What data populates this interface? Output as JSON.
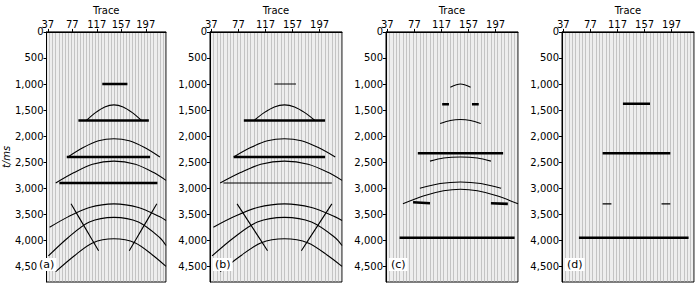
{
  "chart_data": [
    {
      "type": "line",
      "label": "(a)",
      "x_label": "Trace",
      "y_label": "t/ms",
      "color": "#000000",
      "grid": true,
      "xlim": [
        35,
        230
      ],
      "xticks": [
        37,
        77,
        117,
        157,
        197
      ],
      "ylim": [
        0,
        4800
      ],
      "yticks": [
        0,
        500,
        1000,
        1500,
        2000,
        2500,
        3000,
        3500,
        4000,
        4500
      ],
      "series": [
        {
          "line_style": "bold",
          "values": [
            [
              126,
              1000
            ],
            [
              167,
              1000
            ]
          ]
        },
        {
          "line_style": "solid",
          "values": [
            [
              100,
              1700
            ],
            [
              115,
              1550
            ],
            [
              130,
              1440
            ],
            [
              145,
              1400
            ],
            [
              160,
              1440
            ],
            [
              175,
              1550
            ],
            [
              190,
              1700
            ]
          ]
        },
        {
          "line_style": "bold",
          "values": [
            [
              87,
              1700
            ],
            [
              202,
              1700
            ]
          ]
        },
        {
          "line_style": "solid",
          "values": [
            [
              70,
              2400
            ],
            [
              95,
              2220
            ],
            [
              120,
              2090
            ],
            [
              145,
              2050
            ],
            [
              170,
              2090
            ],
            [
              195,
              2220
            ],
            [
              220,
              2400
            ]
          ]
        },
        {
          "line_style": "bold",
          "values": [
            [
              68,
              2400
            ],
            [
              204,
              2400
            ]
          ]
        },
        {
          "line_style": "bold",
          "values": [
            [
              56,
              2900
            ],
            [
              216,
              2900
            ]
          ]
        },
        {
          "line_style": "solid",
          "values": [
            [
              50,
              2900
            ],
            [
              80,
              2700
            ],
            [
              110,
              2540
            ],
            [
              145,
              2480
            ],
            [
              180,
              2540
            ],
            [
              210,
              2700
            ],
            [
              230,
              2850
            ]
          ]
        },
        {
          "line_style": "solid",
          "values": [
            [
              40,
              3750
            ],
            [
              70,
              3550
            ],
            [
              105,
              3370
            ],
            [
              145,
              3300
            ],
            [
              185,
              3370
            ],
            [
              220,
              3550
            ],
            [
              230,
              3620
            ]
          ]
        },
        {
          "line_style": "solid",
          "values": [
            [
              38,
              4300
            ],
            [
              70,
              3950
            ],
            [
              105,
              3650
            ],
            [
              145,
              3560
            ],
            [
              185,
              3650
            ],
            [
              220,
              3950
            ],
            [
              230,
              4100
            ]
          ]
        },
        {
          "line_style": "solid",
          "values": [
            [
              50,
              4600
            ],
            [
              80,
              4300
            ],
            [
              110,
              4050
            ],
            [
              145,
              3970
            ],
            [
              180,
              4050
            ],
            [
              210,
              4300
            ],
            [
              230,
              4500
            ]
          ]
        },
        {
          "line_style": "solid",
          "values": [
            [
              75,
              3300
            ],
            [
              100,
              3800
            ],
            [
              120,
              4200
            ]
          ]
        },
        {
          "line_style": "solid",
          "values": [
            [
              215,
              3300
            ],
            [
              190,
              3800
            ],
            [
              170,
              4200
            ]
          ]
        }
      ]
    },
    {
      "type": "line",
      "label": "(b)",
      "x_label": "Trace",
      "color": "#000000",
      "grid": true,
      "xlim": [
        35,
        230
      ],
      "xticks": [
        37,
        77,
        117,
        157,
        197
      ],
      "ylim": [
        0,
        4800
      ],
      "yticks": [
        0,
        500,
        1000,
        1500,
        2000,
        2500,
        3000,
        3500,
        4000,
        4500
      ],
      "series": [
        {
          "line_style": "solid",
          "values": [
            [
              130,
              1000
            ],
            [
              162,
              1000
            ]
          ]
        },
        {
          "line_style": "solid",
          "values": [
            [
              100,
              1700
            ],
            [
              115,
              1550
            ],
            [
              130,
              1440
            ],
            [
              145,
              1400
            ],
            [
              160,
              1440
            ],
            [
              175,
              1550
            ],
            [
              190,
              1700
            ]
          ]
        },
        {
          "line_style": "bold",
          "values": [
            [
              85,
              1700
            ],
            [
              205,
              1700
            ]
          ]
        },
        {
          "line_style": "solid",
          "values": [
            [
              70,
              2400
            ],
            [
              95,
              2220
            ],
            [
              120,
              2090
            ],
            [
              145,
              2050
            ],
            [
              170,
              2090
            ],
            [
              195,
              2220
            ],
            [
              220,
              2400
            ]
          ]
        },
        {
          "line_style": "bold",
          "values": [
            [
              70,
              2400
            ],
            [
              205,
              2400
            ]
          ]
        },
        {
          "line_style": "solid",
          "values": [
            [
              55,
              2900
            ],
            [
              215,
              2900
            ]
          ]
        },
        {
          "line_style": "solid",
          "values": [
            [
              50,
              2900
            ],
            [
              80,
              2700
            ],
            [
              110,
              2540
            ],
            [
              145,
              2480
            ],
            [
              180,
              2540
            ],
            [
              210,
              2700
            ],
            [
              230,
              2850
            ]
          ]
        },
        {
          "line_style": "solid",
          "values": [
            [
              40,
              3750
            ],
            [
              70,
              3550
            ],
            [
              105,
              3370
            ],
            [
              145,
              3300
            ],
            [
              185,
              3370
            ],
            [
              220,
              3550
            ],
            [
              230,
              3620
            ]
          ]
        },
        {
          "line_style": "solid",
          "values": [
            [
              38,
              4300
            ],
            [
              70,
              3950
            ],
            [
              105,
              3650
            ],
            [
              145,
              3560
            ],
            [
              185,
              3650
            ],
            [
              220,
              3950
            ],
            [
              230,
              4100
            ]
          ]
        },
        {
          "line_style": "solid",
          "values": [
            [
              50,
              4600
            ],
            [
              80,
              4300
            ],
            [
              110,
              4050
            ],
            [
              145,
              3970
            ],
            [
              180,
              4050
            ],
            [
              210,
              4300
            ],
            [
              230,
              4500
            ]
          ]
        },
        {
          "line_style": "solid",
          "values": [
            [
              75,
              3300
            ],
            [
              100,
              3800
            ],
            [
              120,
              4200
            ]
          ]
        },
        {
          "line_style": "solid",
          "values": [
            [
              215,
              3300
            ],
            [
              190,
              3800
            ],
            [
              170,
              4200
            ]
          ]
        }
      ]
    },
    {
      "type": "line",
      "label": "(c)",
      "x_label": "Trace",
      "color": "#000000",
      "grid": true,
      "xlim": [
        35,
        230
      ],
      "xticks": [
        37,
        77,
        117,
        157,
        197
      ],
      "ylim": [
        0,
        4800
      ],
      "yticks": [
        0,
        500,
        1000,
        1500,
        2000,
        2500,
        3000,
        3500,
        4000,
        4500
      ],
      "series": [
        {
          "line_style": "solid",
          "values": [
            [
              130,
              1060
            ],
            [
              145,
              1000
            ],
            [
              160,
              1060
            ]
          ]
        },
        {
          "line_style": "bold",
          "values": [
            [
              118,
              1390
            ],
            [
              128,
              1390
            ]
          ]
        },
        {
          "line_style": "bold",
          "values": [
            [
              162,
              1390
            ],
            [
              172,
              1390
            ]
          ]
        },
        {
          "line_style": "solid",
          "values": [
            [
              115,
              1760
            ],
            [
              130,
              1700
            ],
            [
              145,
              1680
            ],
            [
              160,
              1700
            ],
            [
              175,
              1760
            ]
          ]
        },
        {
          "line_style": "bold",
          "values": [
            [
              82,
              2330
            ],
            [
              208,
              2330
            ]
          ]
        },
        {
          "line_style": "solid",
          "values": [
            [
              100,
              2480
            ],
            [
              120,
              2420
            ],
            [
              145,
              2400
            ],
            [
              170,
              2420
            ],
            [
              190,
              2480
            ]
          ]
        },
        {
          "line_style": "solid",
          "values": [
            [
              85,
              3000
            ],
            [
              115,
              2910
            ],
            [
              145,
              2880
            ],
            [
              175,
              2910
            ],
            [
              205,
              3000
            ]
          ]
        },
        {
          "line_style": "solid",
          "values": [
            [
              60,
              3300
            ],
            [
              90,
              3150
            ],
            [
              120,
              3050
            ],
            [
              145,
              3020
            ],
            [
              170,
              3050
            ],
            [
              200,
              3150
            ],
            [
              230,
              3300
            ]
          ]
        },
        {
          "line_style": "bold",
          "values": [
            [
              75,
              3270
            ],
            [
              100,
              3290
            ]
          ]
        },
        {
          "line_style": "bold",
          "values": [
            [
              190,
              3290
            ],
            [
              215,
              3300
            ]
          ]
        },
        {
          "line_style": "bold",
          "values": [
            [
              55,
              3950
            ],
            [
              225,
              3950
            ]
          ]
        }
      ]
    },
    {
      "type": "line",
      "label": "(d)",
      "x_label": "Trace",
      "color": "#000000",
      "grid": true,
      "xlim": [
        35,
        230
      ],
      "xticks": [
        37,
        77,
        117,
        157,
        197
      ],
      "ylim": [
        0,
        4800
      ],
      "yticks": [
        0,
        500,
        1000,
        1500,
        2000,
        2500,
        3000,
        3500,
        4000,
        4500
      ],
      "series": [
        {
          "line_style": "bold",
          "values": [
            [
              125,
              1380
            ],
            [
              165,
              1380
            ]
          ]
        },
        {
          "line_style": "bold",
          "values": [
            [
              95,
              2330
            ],
            [
              195,
              2330
            ]
          ]
        },
        {
          "line_style": "solid",
          "values": [
            [
              95,
              3300
            ],
            [
              108,
              3300
            ]
          ]
        },
        {
          "line_style": "solid",
          "values": [
            [
              182,
              3300
            ],
            [
              195,
              3300
            ]
          ]
        },
        {
          "line_style": "bold",
          "values": [
            [
              60,
              3950
            ],
            [
              222,
              3950
            ]
          ]
        }
      ]
    }
  ]
}
